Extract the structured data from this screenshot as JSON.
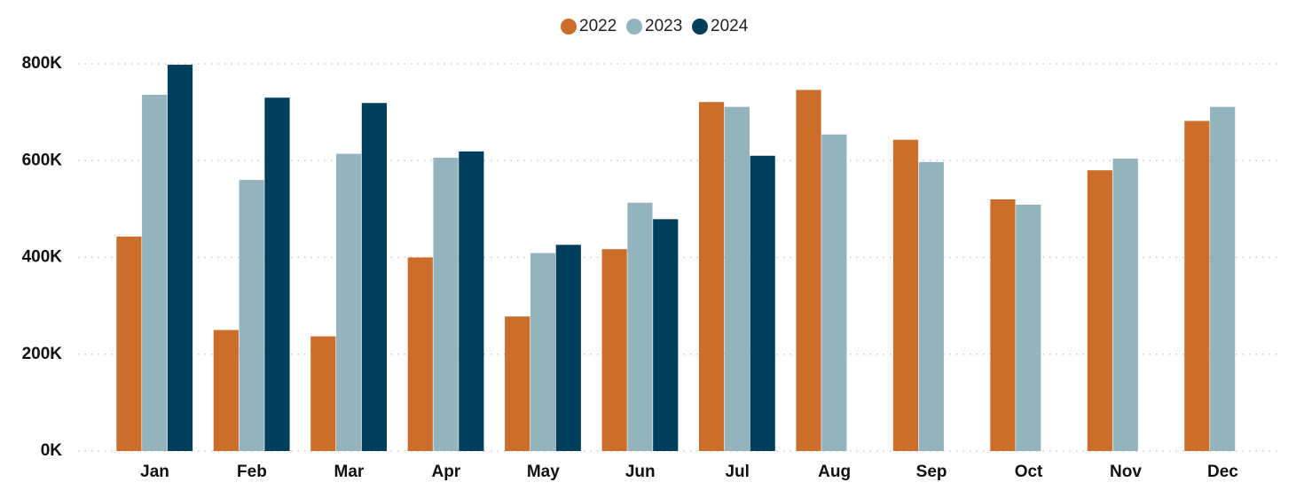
{
  "chart_data": {
    "type": "bar",
    "title": "",
    "xlabel": "",
    "ylabel": "",
    "categories": [
      "Jan",
      "Feb",
      "Mar",
      "Apr",
      "May",
      "Jun",
      "Jul",
      "Aug",
      "Sep",
      "Oct",
      "Nov",
      "Dec"
    ],
    "series": [
      {
        "name": "2022",
        "color": "#CC6E2B",
        "values": [
          443000,
          250000,
          237000,
          400000,
          278000,
          417000,
          721000,
          746000,
          643000,
          520000,
          580000,
          682000
        ]
      },
      {
        "name": "2023",
        "color": "#93B4BD",
        "values": [
          736000,
          560000,
          614000,
          606000,
          409000,
          513000,
          711000,
          654000,
          597000,
          509000,
          604000,
          711000
        ]
      },
      {
        "name": "2024",
        "color": "#003F5C",
        "values": [
          798000,
          730000,
          719000,
          619000,
          426000,
          479000,
          610000,
          null,
          null,
          null,
          null,
          null
        ]
      }
    ],
    "ylim": [
      0,
      800000
    ],
    "yticks": [
      0,
      200000,
      400000,
      600000,
      800000
    ],
    "ytick_labels": [
      "0K",
      "200K",
      "400K",
      "600K",
      "800K"
    ],
    "grid": true,
    "legend_position": "top-center"
  }
}
